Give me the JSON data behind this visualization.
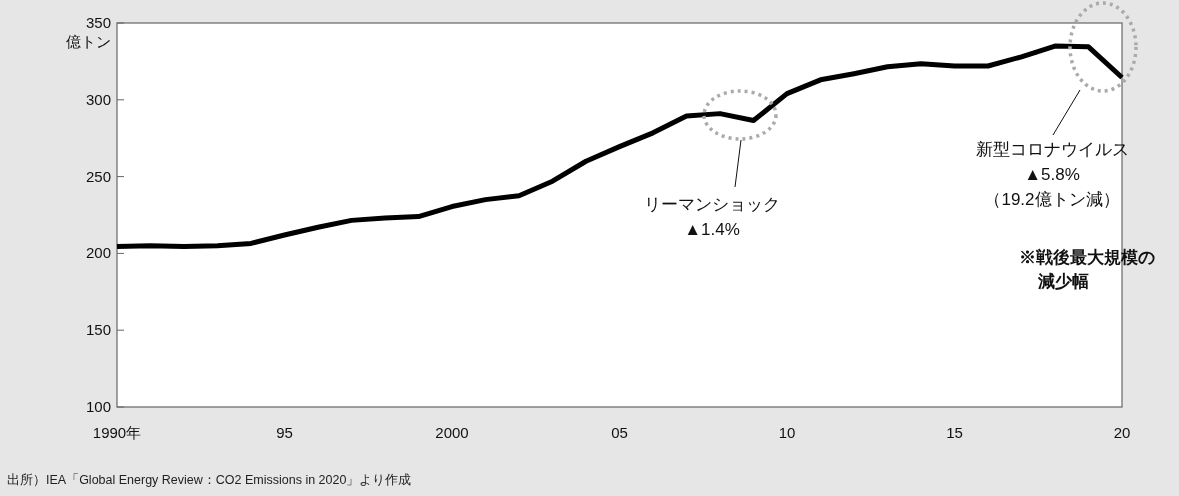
{
  "chart_data": {
    "type": "line",
    "ylabel": "億トン",
    "x": [
      1990,
      1991,
      1992,
      1993,
      1994,
      1995,
      1996,
      1997,
      1998,
      1999,
      2000,
      2001,
      2002,
      2003,
      2004,
      2005,
      2006,
      2007,
      2008,
      2009,
      2010,
      2011,
      2012,
      2013,
      2014,
      2015,
      2016,
      2017,
      2018,
      2019,
      2020
    ],
    "series": [
      {
        "color": "#000000",
        "values": [
          204.5,
          205,
          204.5,
          205,
          206.5,
          212,
          217,
          221.5,
          223,
          224,
          230.5,
          235,
          237.5,
          247,
          260,
          269.5,
          278.5,
          289.5,
          291,
          286.5,
          304,
          313,
          317,
          321.5,
          323.5,
          322,
          322,
          328,
          335,
          334.5,
          314.5
        ]
      }
    ],
    "xlim": [
      1990,
      2020
    ],
    "xticks": [
      {
        "value": 1990,
        "label": "1990年"
      },
      {
        "value": 1995,
        "label": "95"
      },
      {
        "value": 2000,
        "label": "2000"
      },
      {
        "value": 2005,
        "label": "05"
      },
      {
        "value": 2010,
        "label": "10"
      },
      {
        "value": 2015,
        "label": "15"
      },
      {
        "value": 2020,
        "label": "20"
      }
    ],
    "ylim": [
      100,
      350
    ],
    "yticks": [
      100,
      150,
      200,
      250,
      300,
      350
    ],
    "grid": false,
    "marker": "none",
    "line_style": "solid",
    "annotations": [
      "リーマンショック\n▲1.4%",
      "新型コロナウイルス\n▲5.8%\n（19.2億トン減）",
      "※戦後最大規模の減少幅",
      "出所）IEA「Global Energy Review：CO2 Emissions in 2020」より作成"
    ]
  }
}
